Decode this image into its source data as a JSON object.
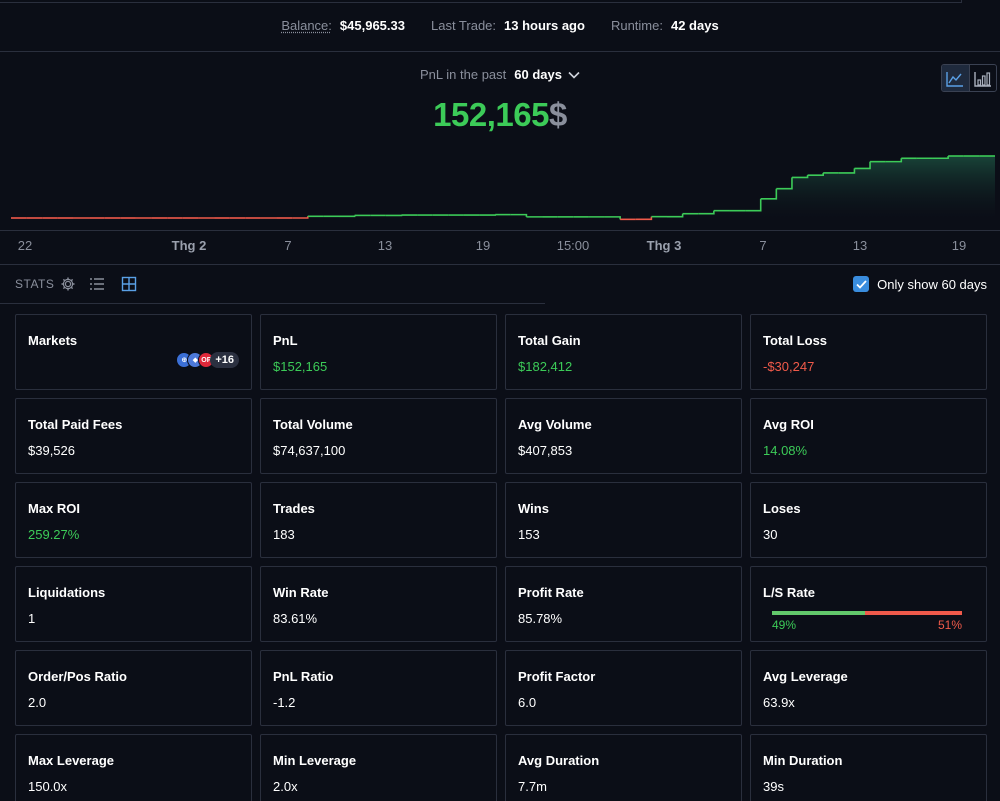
{
  "summary": {
    "balance_label": "Balance:",
    "balance_value": "$45,965.33",
    "last_trade_label": "Last Trade:",
    "last_trade_value": "13 hours ago",
    "runtime_label": "Runtime:",
    "runtime_value": "42 days"
  },
  "pnl": {
    "period_label": "PnL in the past",
    "period_value": "60 days",
    "total_value": "152,165",
    "currency": "$"
  },
  "chart_data": {
    "type": "area",
    "x_tick_labels": [
      "22",
      "Thg 2",
      "7",
      "13",
      "19",
      "15:00",
      "Thg 3",
      "7",
      "13",
      "19"
    ],
    "bold_ticks": [
      "Thg 2",
      "Thg 3"
    ],
    "values": [
      0,
      0,
      0,
      0,
      0,
      0,
      0,
      0,
      0,
      0,
      0,
      0,
      0,
      0,
      0,
      0,
      0,
      0,
      0,
      1500,
      1500,
      1500,
      2300,
      2300,
      2300,
      2600,
      2600,
      2600,
      2600,
      2600,
      2600,
      3000,
      3000,
      1000,
      1000,
      1000,
      1000,
      1000,
      1000,
      -1200,
      -1200,
      1200,
      1200,
      3800,
      3800,
      6500,
      6500,
      6500,
      17000,
      26000,
      36000,
      38000,
      40000,
      40000,
      44000,
      50000,
      50000,
      53000,
      53000,
      53000,
      55000,
      55000,
      55000,
      55000
    ],
    "positive_color": "#3ccb58",
    "negative_color": "#f05a4a",
    "max_value": 152165
  },
  "stats": {
    "label": "STATS",
    "only_show_label": "Only show 60 days",
    "only_show_checked": true,
    "icons": [
      "gear-icon",
      "list-view-icon",
      "grid-view-icon"
    ]
  },
  "cards": [
    {
      "title": "Markets",
      "value": "",
      "tone": "",
      "markets_more": "+16"
    },
    {
      "title": "PnL",
      "value": "$152,165",
      "tone": "pos"
    },
    {
      "title": "Total Gain",
      "value": "$182,412",
      "tone": "pos"
    },
    {
      "title": "Total Loss",
      "value": "-$30,247",
      "tone": "neg"
    },
    {
      "title": "Total Paid Fees",
      "value": "$39,526",
      "tone": ""
    },
    {
      "title": "Total Volume",
      "value": "$74,637,100",
      "tone": ""
    },
    {
      "title": "Avg Volume",
      "value": "$407,853",
      "tone": ""
    },
    {
      "title": "Avg ROI",
      "value": "14.08%",
      "tone": "pos"
    },
    {
      "title": "Max ROI",
      "value": "259.27%",
      "tone": "pos"
    },
    {
      "title": "Trades",
      "value": "183",
      "tone": ""
    },
    {
      "title": "Wins",
      "value": "153",
      "tone": ""
    },
    {
      "title": "Loses",
      "value": "30",
      "tone": ""
    },
    {
      "title": "Liquidations",
      "value": "1",
      "tone": ""
    },
    {
      "title": "Win Rate",
      "value": "83.61%",
      "tone": ""
    },
    {
      "title": "Profit Rate",
      "value": "85.78%",
      "tone": ""
    },
    {
      "title": "L/S Rate",
      "value": "",
      "tone": "",
      "long_pct": "49%",
      "short_pct": "51%",
      "long_fraction": 0.49
    },
    {
      "title": "Order/Pos Ratio",
      "value": "2.0",
      "tone": ""
    },
    {
      "title": "PnL Ratio",
      "value": "-1.2",
      "tone": ""
    },
    {
      "title": "Profit Factor",
      "value": "6.0",
      "tone": ""
    },
    {
      "title": "Avg Leverage",
      "value": "63.9x",
      "tone": ""
    },
    {
      "title": "Max Leverage",
      "value": "150.0x",
      "tone": ""
    },
    {
      "title": "Min Leverage",
      "value": "2.0x",
      "tone": ""
    },
    {
      "title": "Avg Duration",
      "value": "7.7m",
      "tone": ""
    },
    {
      "title": "Min Duration",
      "value": "39s",
      "tone": ""
    }
  ],
  "market_coins": [
    {
      "name": "coin-1-icon",
      "color": "#3b6fd6",
      "glyph": "⊕"
    },
    {
      "name": "coin-2-icon",
      "color": "#4d79d9",
      "glyph": "◆"
    },
    {
      "name": "coin-3-icon",
      "color": "#e0283a",
      "glyph": "OP"
    }
  ]
}
